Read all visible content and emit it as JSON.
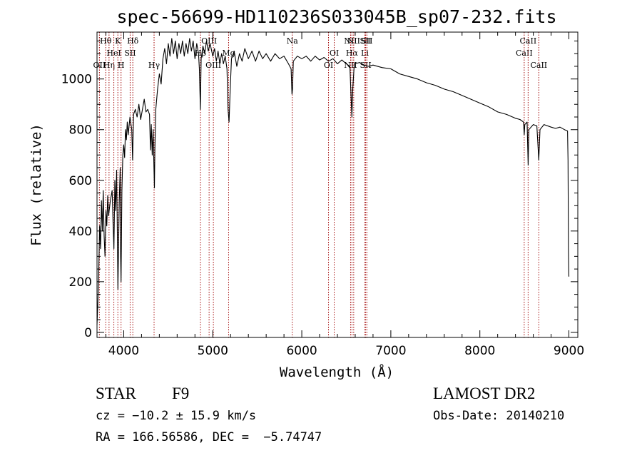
{
  "chart_data": {
    "type": "line",
    "title": "spec-56699-HD110236S033045B_sp07-232.fits",
    "xlabel": "Wavelength (Å)",
    "ylabel": "Flux (relative)",
    "xlim": [
      3700,
      9100
    ],
    "ylim": [
      -20,
      1185
    ],
    "xticks": [
      4000,
      5000,
      6000,
      7000,
      8000,
      9000
    ],
    "yticks": [
      0,
      200,
      400,
      600,
      800,
      1000
    ],
    "grid": false,
    "series": [
      {
        "points": [
          [
            3700,
            30
          ],
          [
            3710,
            120
          ],
          [
            3720,
            250
          ],
          [
            3730,
            420
          ],
          [
            3740,
            330
          ],
          [
            3750,
            520
          ],
          [
            3760,
            400
          ],
          [
            3770,
            560
          ],
          [
            3780,
            380
          ],
          [
            3790,
            300
          ],
          [
            3800,
            480
          ],
          [
            3810,
            420
          ],
          [
            3820,
            540
          ],
          [
            3830,
            460
          ],
          [
            3850,
            520
          ],
          [
            3870,
            560
          ],
          [
            3880,
            430
          ],
          [
            3890,
            330
          ],
          [
            3900,
            600
          ],
          [
            3910,
            480
          ],
          [
            3920,
            640
          ],
          [
            3930,
            350
          ],
          [
            3935,
            170
          ],
          [
            3940,
            300
          ],
          [
            3950,
            520
          ],
          [
            3960,
            650
          ],
          [
            3965,
            300
          ],
          [
            3970,
            200
          ],
          [
            3980,
            560
          ],
          [
            3990,
            700
          ],
          [
            4000,
            740
          ],
          [
            4010,
            690
          ],
          [
            4020,
            800
          ],
          [
            4030,
            760
          ],
          [
            4040,
            830
          ],
          [
            4050,
            780
          ],
          [
            4070,
            850
          ],
          [
            4090,
            800
          ],
          [
            4100,
            680
          ],
          [
            4110,
            860
          ],
          [
            4130,
            880
          ],
          [
            4150,
            850
          ],
          [
            4170,
            900
          ],
          [
            4190,
            840
          ],
          [
            4210,
            880
          ],
          [
            4230,
            920
          ],
          [
            4250,
            870
          ],
          [
            4270,
            880
          ],
          [
            4290,
            860
          ],
          [
            4300,
            720
          ],
          [
            4310,
            820
          ],
          [
            4320,
            700
          ],
          [
            4330,
            800
          ],
          [
            4340,
            640
          ],
          [
            4345,
            570
          ],
          [
            4350,
            720
          ],
          [
            4360,
            880
          ],
          [
            4380,
            960
          ],
          [
            4400,
            1020
          ],
          [
            4420,
            980
          ],
          [
            4440,
            1080
          ],
          [
            4460,
            1120
          ],
          [
            4480,
            1060
          ],
          [
            4500,
            1140
          ],
          [
            4520,
            1090
          ],
          [
            4540,
            1160
          ],
          [
            4560,
            1100
          ],
          [
            4580,
            1150
          ],
          [
            4600,
            1080
          ],
          [
            4620,
            1140
          ],
          [
            4640,
            1100
          ],
          [
            4660,
            1150
          ],
          [
            4680,
            1090
          ],
          [
            4700,
            1140
          ],
          [
            4720,
            1100
          ],
          [
            4740,
            1160
          ],
          [
            4760,
            1110
          ],
          [
            4780,
            1150
          ],
          [
            4800,
            1080
          ],
          [
            4820,
            1140
          ],
          [
            4840,
            1100
          ],
          [
            4850,
            1040
          ],
          [
            4861,
            880
          ],
          [
            4870,
            1080
          ],
          [
            4890,
            1130
          ],
          [
            4910,
            1100
          ],
          [
            4930,
            1150
          ],
          [
            4950,
            1110
          ],
          [
            4970,
            1140
          ],
          [
            5000,
            1090
          ],
          [
            5020,
            1120
          ],
          [
            5040,
            1070
          ],
          [
            5060,
            1110
          ],
          [
            5080,
            1060
          ],
          [
            5100,
            1100
          ],
          [
            5120,
            1060
          ],
          [
            5140,
            1090
          ],
          [
            5160,
            1040
          ],
          [
            5172,
            880
          ],
          [
            5183,
            830
          ],
          [
            5195,
            950
          ],
          [
            5210,
            1080
          ],
          [
            5240,
            1110
          ],
          [
            5270,
            1050
          ],
          [
            5300,
            1100
          ],
          [
            5330,
            1070
          ],
          [
            5360,
            1120
          ],
          [
            5400,
            1080
          ],
          [
            5440,
            1110
          ],
          [
            5480,
            1070
          ],
          [
            5520,
            1110
          ],
          [
            5560,
            1080
          ],
          [
            5600,
            1100
          ],
          [
            5650,
            1070
          ],
          [
            5700,
            1100
          ],
          [
            5750,
            1080
          ],
          [
            5800,
            1090
          ],
          [
            5850,
            1060
          ],
          [
            5880,
            1040
          ],
          [
            5890,
            940
          ],
          [
            5896,
            960
          ],
          [
            5905,
            1070
          ],
          [
            5950,
            1090
          ],
          [
            6000,
            1080
          ],
          [
            6050,
            1090
          ],
          [
            6100,
            1070
          ],
          [
            6150,
            1090
          ],
          [
            6200,
            1075
          ],
          [
            6250,
            1085
          ],
          [
            6300,
            1070
          ],
          [
            6350,
            1080
          ],
          [
            6400,
            1060
          ],
          [
            6450,
            1075
          ],
          [
            6500,
            1060
          ],
          [
            6540,
            1050
          ],
          [
            6555,
            920
          ],
          [
            6563,
            850
          ],
          [
            6572,
            960
          ],
          [
            6590,
            1060
          ],
          [
            6650,
            1065
          ],
          [
            6700,
            1055
          ],
          [
            6750,
            1050
          ],
          [
            6800,
            1055
          ],
          [
            6900,
            1045
          ],
          [
            7000,
            1040
          ],
          [
            7100,
            1020
          ],
          [
            7200,
            1010
          ],
          [
            7300,
            1000
          ],
          [
            7400,
            985
          ],
          [
            7500,
            975
          ],
          [
            7600,
            960
          ],
          [
            7700,
            950
          ],
          [
            7800,
            935
          ],
          [
            7900,
            920
          ],
          [
            8000,
            905
          ],
          [
            8100,
            890
          ],
          [
            8200,
            870
          ],
          [
            8300,
            860
          ],
          [
            8400,
            845
          ],
          [
            8450,
            840
          ],
          [
            8490,
            830
          ],
          [
            8498,
            780
          ],
          [
            8505,
            820
          ],
          [
            8530,
            830
          ],
          [
            8542,
            660
          ],
          [
            8550,
            800
          ],
          [
            8600,
            820
          ],
          [
            8640,
            815
          ],
          [
            8662,
            680
          ],
          [
            8675,
            800
          ],
          [
            8720,
            820
          ],
          [
            8800,
            810
          ],
          [
            8850,
            805
          ],
          [
            8900,
            810
          ],
          [
            8950,
            800
          ],
          [
            8985,
            795
          ],
          [
            8990,
            680
          ],
          [
            8995,
            330
          ],
          [
            9000,
            220
          ]
        ]
      }
    ],
    "lines": [
      {
        "wl": 3727,
        "labels": [
          [
            "OII",
            3
          ]
        ]
      },
      {
        "wl": 3798,
        "labels": [
          [
            "Hθ",
            1
          ]
        ]
      },
      {
        "wl": 3835,
        "labels": [
          [
            "Hη",
            3
          ]
        ]
      },
      {
        "wl": 3889,
        "labels": [
          [
            "HeI",
            2
          ]
        ]
      },
      {
        "wl": 3934,
        "labels": [
          [
            "K",
            1
          ]
        ]
      },
      {
        "wl": 3970,
        "labels": [
          [
            "H",
            3
          ]
        ]
      },
      {
        "wl": 4072,
        "labels": [
          [
            "SII",
            2
          ]
        ]
      },
      {
        "wl": 4102,
        "labels": [
          [
            "Hδ",
            1
          ]
        ]
      },
      {
        "wl": 4341,
        "labels": [
          [
            "Hγ",
            3
          ]
        ]
      },
      {
        "wl": 4862,
        "labels": [
          [
            "Hβ",
            2
          ]
        ]
      },
      {
        "wl": 4959,
        "labels": [
          [
            "OIII",
            1
          ]
        ]
      },
      {
        "wl": 5007,
        "labels": [
          [
            "OIII",
            3
          ]
        ]
      },
      {
        "wl": 5178,
        "labels": [
          [
            "Mg",
            2
          ]
        ]
      },
      {
        "wl": 5893,
        "labels": [
          [
            "Na",
            1
          ]
        ]
      },
      {
        "wl": 6300,
        "labels": [
          [
            "OI",
            3
          ]
        ]
      },
      {
        "wl": 6364,
        "labels": [
          [
            "OI",
            2
          ]
        ]
      },
      {
        "wl": 6548,
        "labels": [
          [
            "NII",
            1
          ],
          [
            "NII",
            3
          ]
        ]
      },
      {
        "wl": 6563,
        "labels": [
          [
            "Hα",
            2
          ]
        ]
      },
      {
        "wl": 6583,
        "labels": [
          [
            "NII",
            1
          ]
        ]
      },
      {
        "wl": 6708,
        "labels": [
          [
            "Li",
            2
          ]
        ]
      },
      {
        "wl": 6717,
        "labels": [
          [
            "SII",
            1
          ],
          [
            "SII",
            3
          ]
        ]
      },
      {
        "wl": 6731,
        "labels": [
          [
            "SII",
            1
          ]
        ]
      },
      {
        "wl": 8498,
        "labels": [
          [
            "CaII",
            2
          ]
        ]
      },
      {
        "wl": 8542,
        "labels": [
          [
            "CaII",
            1
          ]
        ]
      },
      {
        "wl": 8662,
        "labels": [
          [
            "CaII",
            3
          ]
        ]
      }
    ],
    "line_color": "#a00000"
  },
  "info": {
    "object_type": "STAR",
    "spectral_class": "F9",
    "survey": "LAMOST DR2",
    "redshift": "cz = −10.2 ± 15.9 km/s",
    "obs_date": "Obs-Date: 20140210",
    "coords": "RA = 166.56586, DEC =  −5.74747"
  }
}
